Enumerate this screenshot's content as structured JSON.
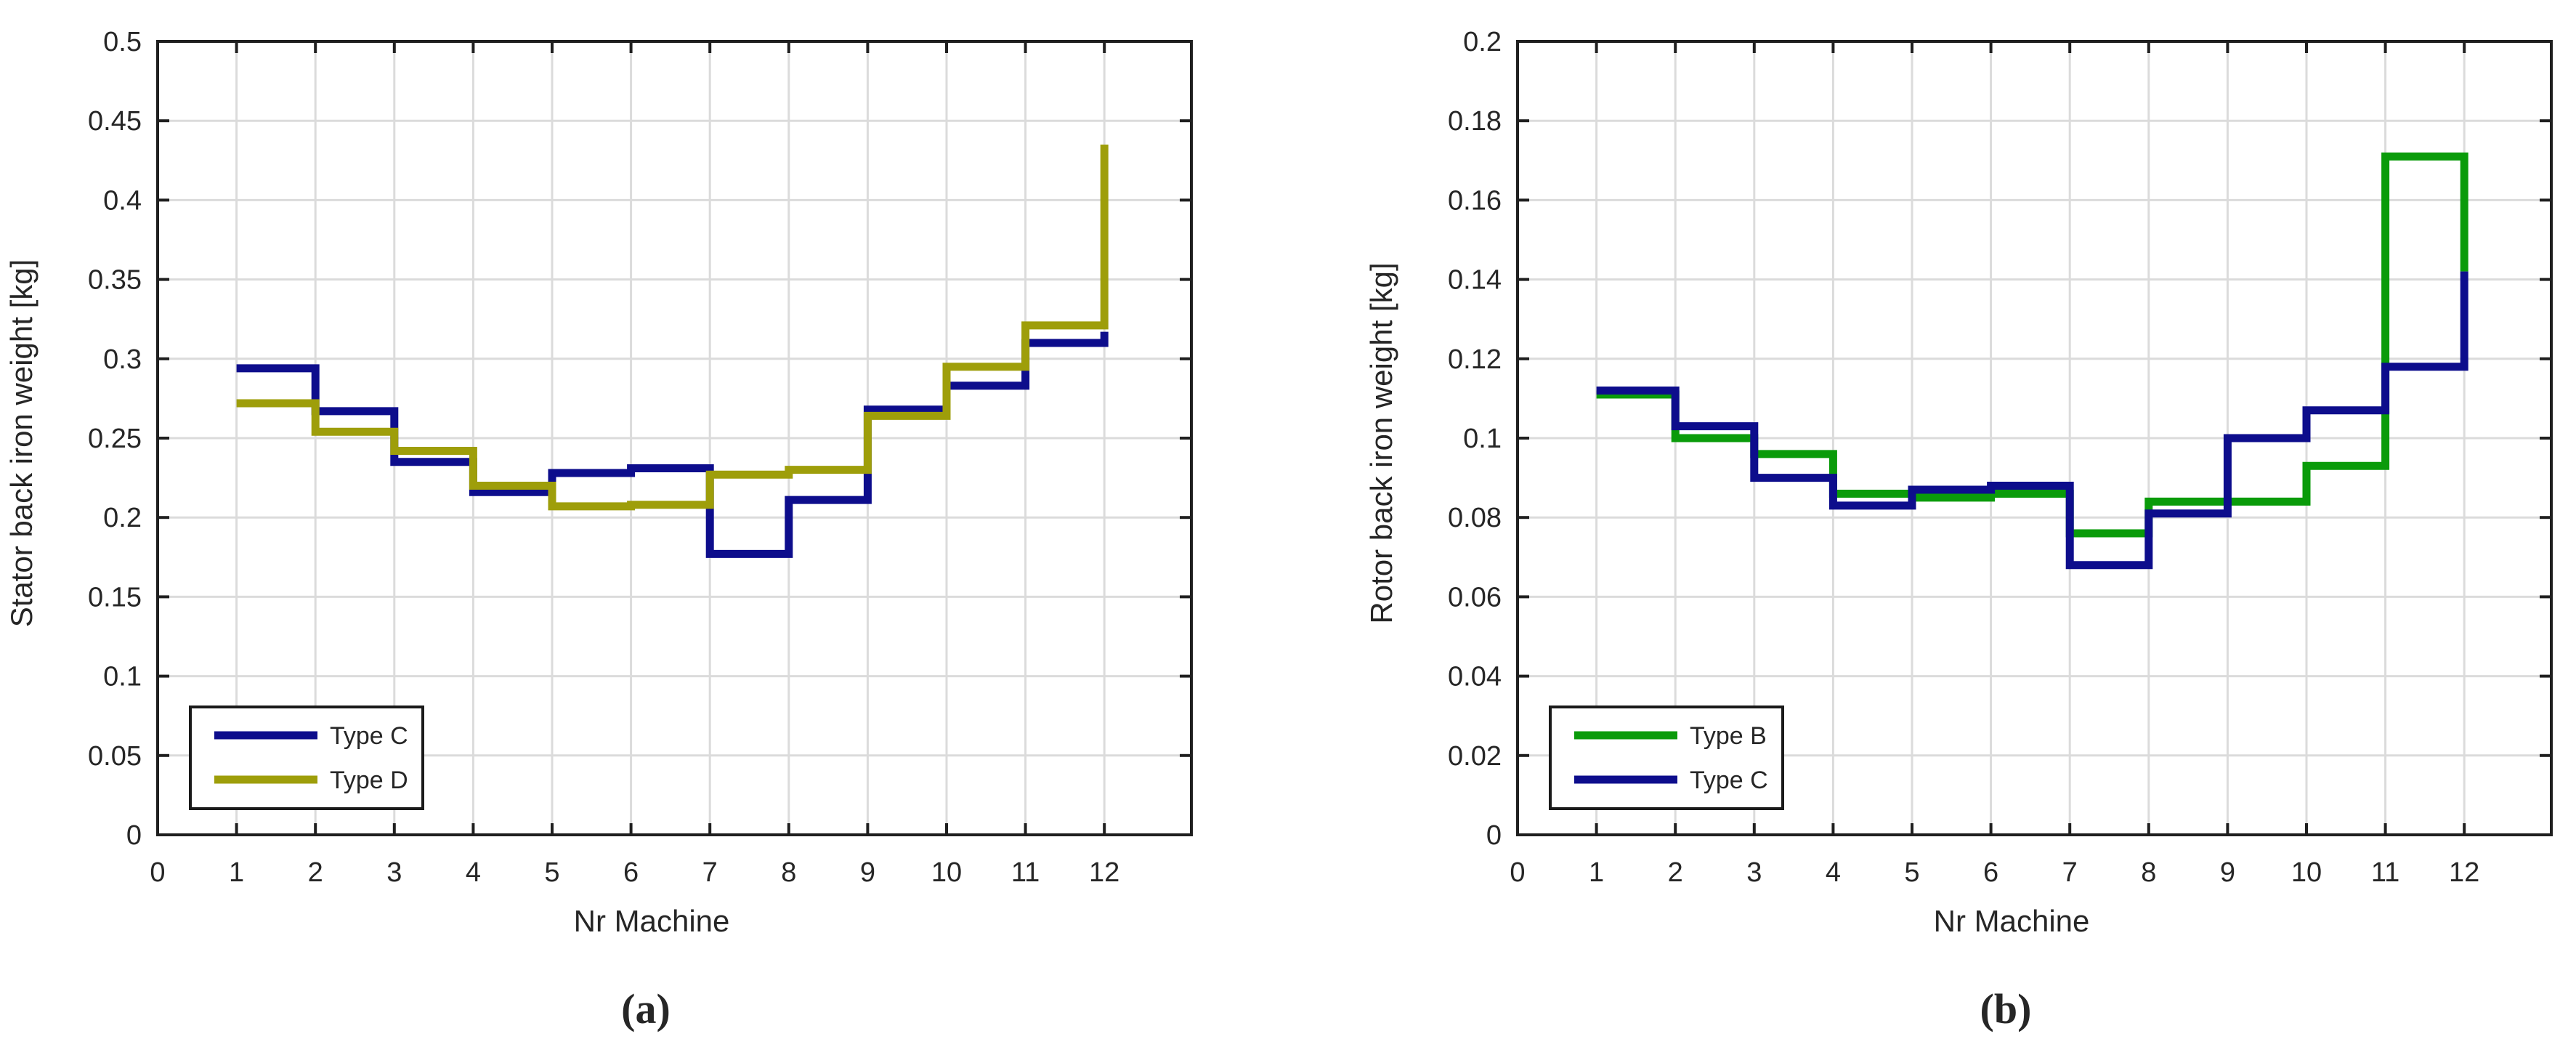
{
  "figure": {
    "background": "#ffffff",
    "axis_color": "#262626",
    "box_color": "#1f1f1f",
    "grid_color": "#dbdbdb",
    "grid_on": true
  },
  "chart_data": [
    {
      "type": "line",
      "style": "stairs-step",
      "caption": "(a)",
      "title": "",
      "xlabel": "Nr Machine",
      "ylabel": "Stator back iron weight [kg]",
      "xlim": [
        0,
        13.1
      ],
      "ylim": [
        0,
        0.5
      ],
      "x_tick_labels": [
        "0",
        "1",
        "2",
        "3",
        "4",
        "5",
        "6",
        "7",
        "8",
        "9",
        "10",
        "11",
        "12"
      ],
      "x_ticks": [
        0,
        1,
        2,
        3,
        4,
        5,
        6,
        7,
        8,
        9,
        10,
        11,
        12
      ],
      "y_tick_labels": [
        "0",
        "0.05",
        "0.1",
        "0.15",
        "0.2",
        "0.25",
        "0.3",
        "0.35",
        "0.4",
        "0.45",
        "0.5"
      ],
      "y_ticks": [
        0,
        0.05,
        0.1,
        0.15,
        0.2,
        0.25,
        0.3,
        0.35,
        0.4,
        0.45,
        0.5
      ],
      "categories": [
        1,
        2,
        3,
        4,
        5,
        6,
        7,
        8,
        9,
        10,
        11,
        12
      ],
      "legend_position": "bottom-left",
      "series": [
        {
          "name": "Type C",
          "color": "#0d0d8c",
          "values": [
            0.294,
            0.267,
            0.235,
            0.216,
            0.228,
            0.231,
            0.177,
            0.211,
            0.268,
            0.283,
            0.31,
            0.317
          ]
        },
        {
          "name": "Type D",
          "color": "#9e9e0a",
          "values": [
            0.272,
            0.254,
            0.242,
            0.22,
            0.207,
            0.208,
            0.227,
            0.23,
            0.264,
            0.295,
            0.321,
            0.435
          ]
        }
      ]
    },
    {
      "type": "line",
      "style": "stairs-step",
      "caption": "(b)",
      "title": "",
      "xlabel": "Nr Machine",
      "ylabel": "Rotor back iron weight [kg]",
      "xlim": [
        0,
        13.1
      ],
      "ylim": [
        0,
        0.2
      ],
      "x_tick_labels": [
        "0",
        "1",
        "2",
        "3",
        "4",
        "5",
        "6",
        "7",
        "8",
        "9",
        "10",
        "11",
        "12"
      ],
      "x_ticks": [
        0,
        1,
        2,
        3,
        4,
        5,
        6,
        7,
        8,
        9,
        10,
        11,
        12
      ],
      "y_tick_labels": [
        "0",
        "0.02",
        "0.04",
        "0.06",
        "0.08",
        "0.1",
        "0.12",
        "0.14",
        "0.16",
        "0.18",
        "0.2"
      ],
      "y_ticks": [
        0,
        0.02,
        0.04,
        0.06,
        0.08,
        0.1,
        0.12,
        0.14,
        0.16,
        0.18,
        0.2
      ],
      "categories": [
        1,
        2,
        3,
        4,
        5,
        6,
        7,
        8,
        9,
        10,
        11,
        12
      ],
      "legend_position": "bottom-left",
      "series": [
        {
          "name": "Type B",
          "color": "#0a9b0a",
          "values": [
            0.111,
            0.1,
            0.096,
            0.086,
            0.085,
            0.086,
            0.076,
            0.084,
            0.084,
            0.093,
            0.171,
            0.142
          ]
        },
        {
          "name": "Type C",
          "color": "#0d0d8c",
          "values": [
            0.112,
            0.103,
            0.09,
            0.083,
            0.087,
            0.088,
            0.068,
            0.081,
            0.1,
            0.107,
            0.118,
            0.142
          ]
        }
      ]
    }
  ]
}
